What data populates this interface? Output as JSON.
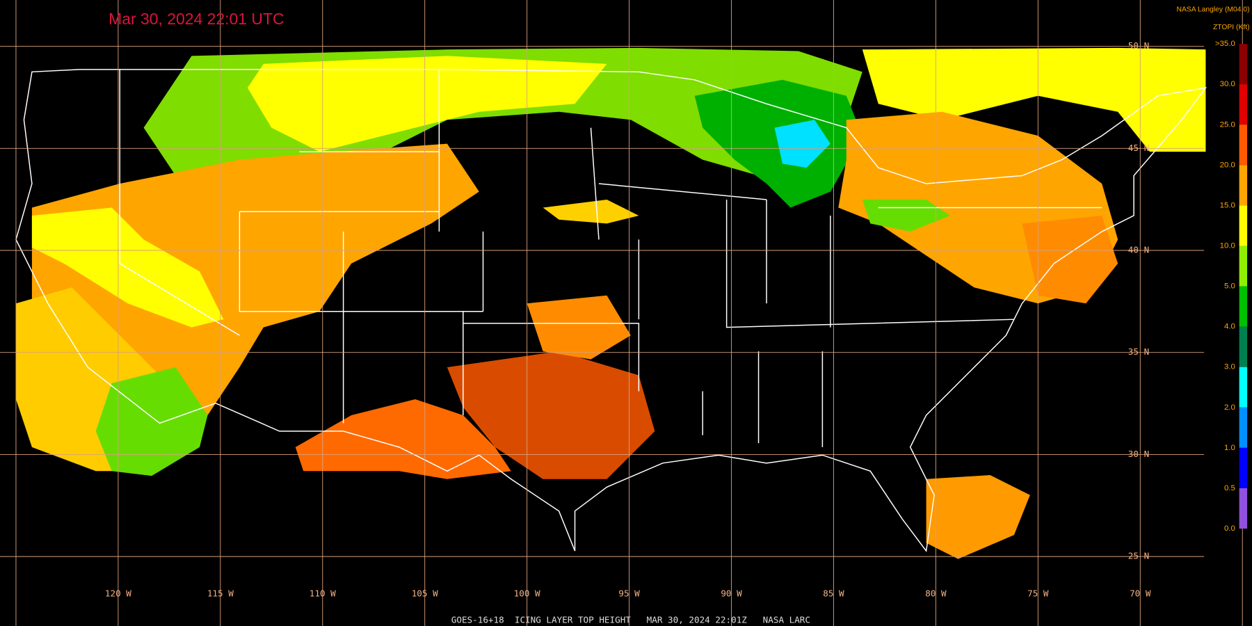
{
  "header": {
    "title": "Mar 30, 2024 22:01 UTC",
    "credit": "NASA Langley (M04.0)",
    "product": "ZTOPI (Kft)"
  },
  "latitude_labels": [
    "50 N",
    "45 N",
    "40 N",
    "35 N",
    "30 N",
    "25 N"
  ],
  "longitude_labels": [
    "120 W",
    "115 W",
    "110 W",
    "105 W",
    "100 W",
    "95 W",
    "90 W",
    "85 W",
    "80 W",
    "75 W",
    "70 W"
  ],
  "colorbar": {
    "labels": [
      ">35.0",
      "30.0",
      "25.0",
      "20.0",
      "15.0",
      "10.0",
      "5.0",
      "4.0",
      "3.0",
      "2.0",
      "1.0",
      "0.5",
      "0.0"
    ],
    "colors": [
      "#8b0000",
      "#e00000",
      "#ff5a00",
      "#ffa500",
      "#ffff00",
      "#90ee00",
      "#00c000",
      "#008050",
      "#00ffff",
      "#0090ff",
      "#0000ff",
      "#9050e0"
    ]
  },
  "footer": "GOES-16+18  ICING LAYER TOP HEIGHT   MAR 30, 2024 22:01Z   NASA LARC"
}
